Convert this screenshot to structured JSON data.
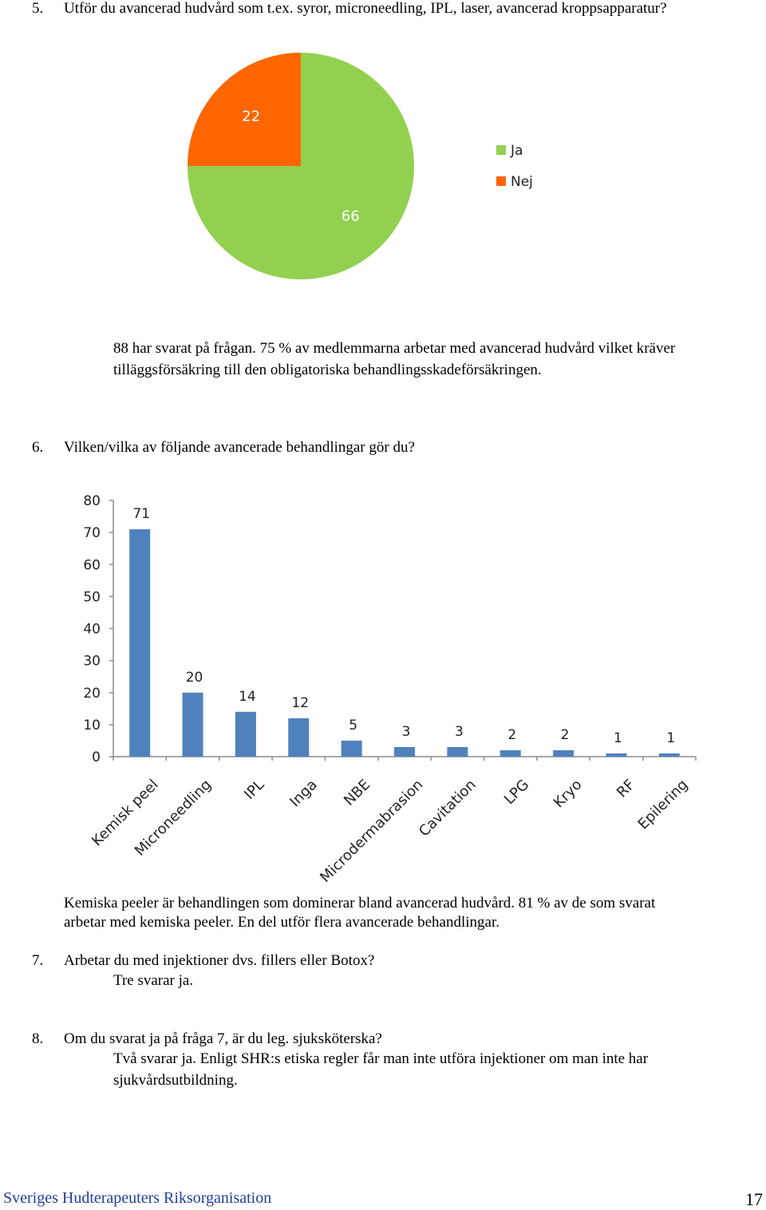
{
  "q5": {
    "number": "5.",
    "text": "Utför du avancerad hudvård som t.ex. syror, microneedling, IPL, laser, avancerad kroppsapparatur?"
  },
  "chart_data": [
    {
      "type": "pie",
      "title": "",
      "categories": [
        "Ja",
        "Nej"
      ],
      "values": [
        66,
        22
      ],
      "value_labels": [
        "66",
        "22"
      ],
      "colors": [
        "#92d050",
        "#ff6600"
      ],
      "legend": {
        "placement": "right",
        "entries": [
          "Ja",
          "Nej"
        ]
      }
    },
    {
      "type": "bar",
      "title": "",
      "categories": [
        "Kemisk peel",
        "Microneedling",
        "IPL",
        "Inga",
        "NBE",
        "Microdermabrasion",
        "Cavitation",
        "LPG",
        "Kryo",
        "RF",
        "Epilering"
      ],
      "values": [
        71,
        20,
        14,
        12,
        5,
        3,
        3,
        2,
        2,
        1,
        1
      ],
      "value_labels": [
        "71",
        "20",
        "14",
        "12",
        "5",
        "3",
        "3",
        "2",
        "2",
        "1",
        "1"
      ],
      "color": "#4f81bd",
      "ylim": [
        0,
        80
      ],
      "yticks": [
        0,
        10,
        20,
        30,
        40,
        50,
        60,
        70,
        80
      ],
      "ytick_labels": [
        "0",
        "10",
        "20",
        "30",
        "40",
        "50",
        "60",
        "70",
        "80"
      ],
      "xlabel": "",
      "ylabel": "",
      "grid": false
    }
  ],
  "q5_answer": {
    "line1": "88 har svarat på frågan.  75 % av medlemmarna arbetar med avancerad hudvård vilket kräver",
    "line2": "tilläggsförsäkring till den obligatoriska behandlingsskadeförsäkringen."
  },
  "q6": {
    "number": "6.",
    "text": "Vilken/vilka av följande avancerade behandlingar gör du?"
  },
  "q6_answer": {
    "line1": "Kemiska peeler är behandlingen som dominerar bland avancerad hudvård. 81 % av de som svarat",
    "line2": "arbetar med kemiska peeler. En del utför flera avancerade behandlingar."
  },
  "q7": {
    "number": "7.",
    "text": "Arbetar du med injektioner dvs. fillers eller Botox?",
    "answer": "Tre svarar ja."
  },
  "q8": {
    "number": "8.",
    "text": "Om du svarat ja på fråga 7, är du leg. sjuksköterska?",
    "answer_line1": "Två svarar ja. Enligt SHR:s etiska regler får man inte utföra injektioner om man inte har",
    "answer_line2": "sjukvårdsutbildning."
  },
  "footer": {
    "organization": "Sveriges Hudterapeuters Riksorganisation",
    "page_number": "17"
  }
}
